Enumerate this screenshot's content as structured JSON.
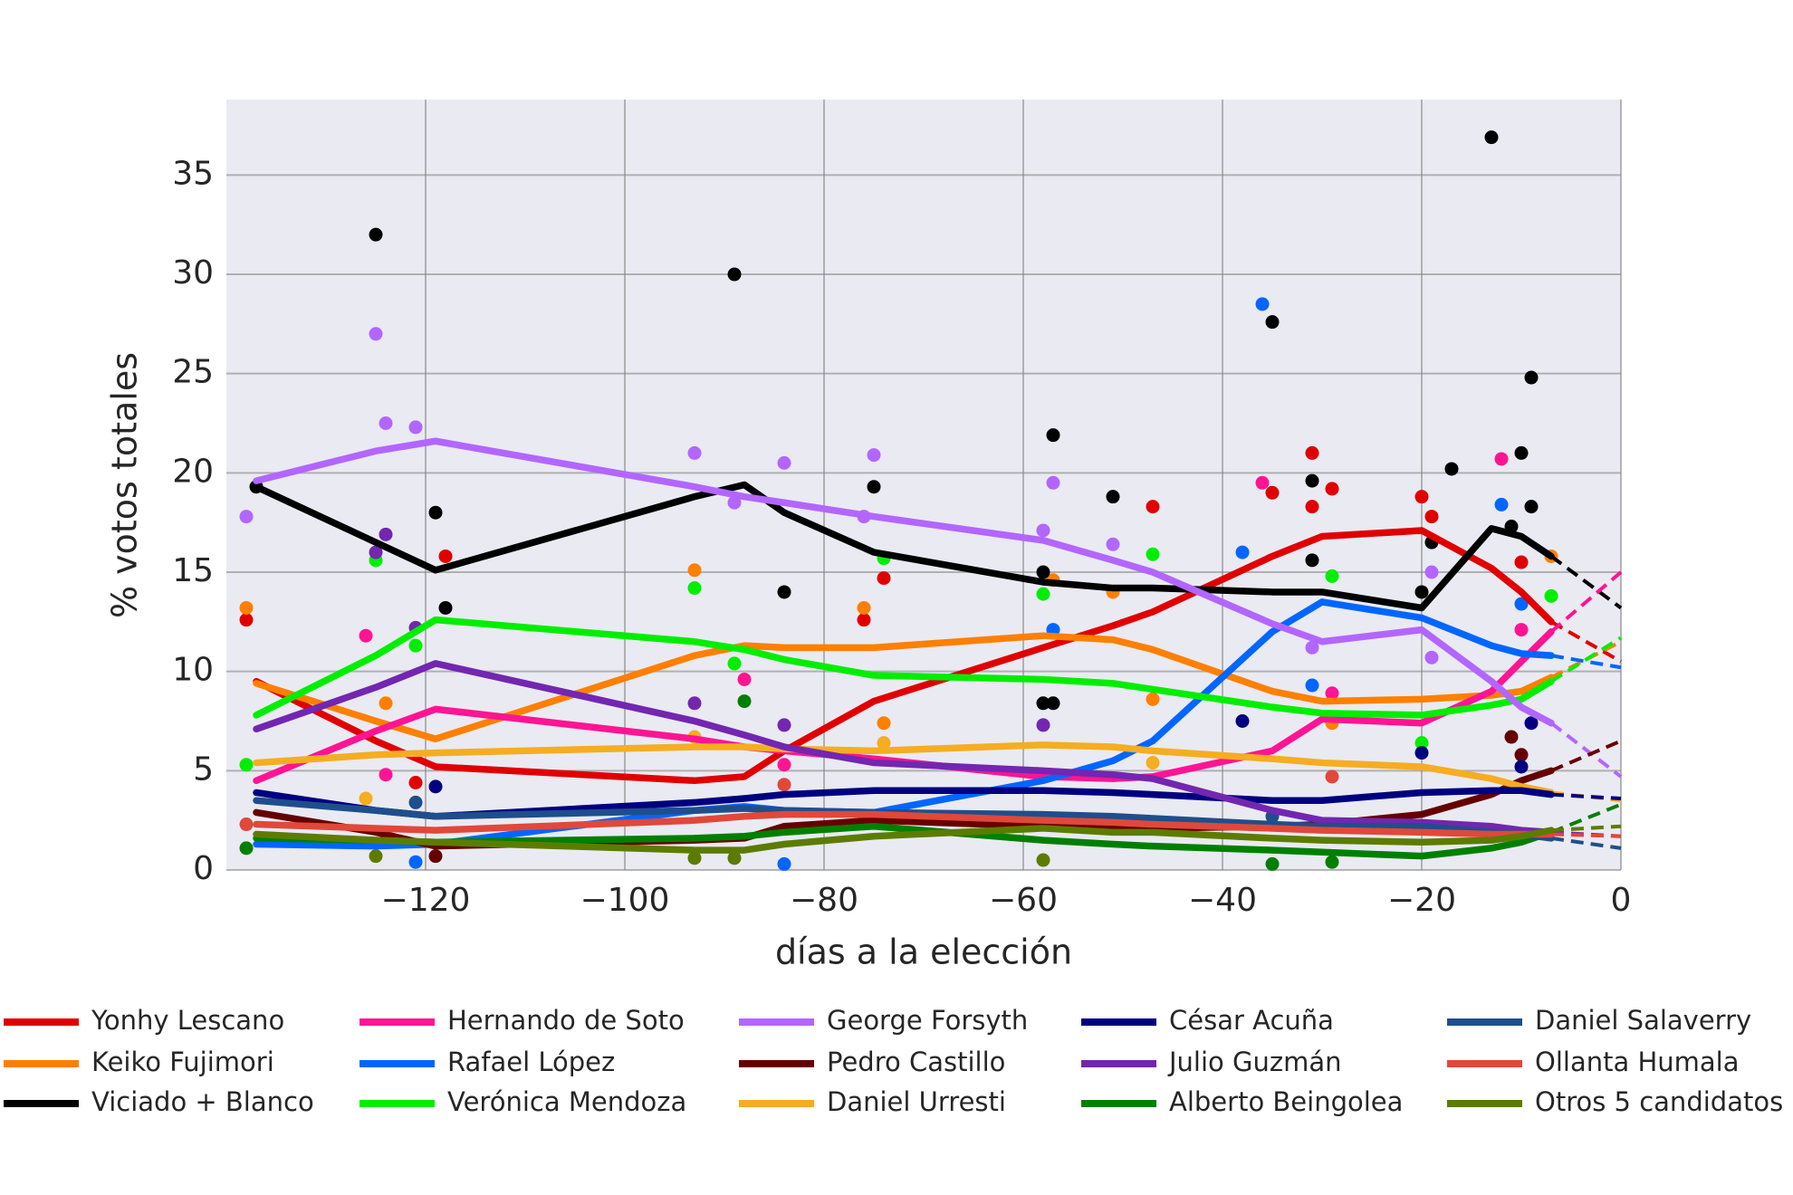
{
  "chart_data": {
    "type": "line",
    "xlabel": "días a la elección",
    "ylabel": "% votos totales",
    "xlim": [
      -140,
      0
    ],
    "ylim": [
      0,
      38.8
    ],
    "xticks": [
      {
        "value": -120,
        "label": "−120"
      },
      {
        "value": -100,
        "label": "−100"
      },
      {
        "value": -80,
        "label": "−80"
      },
      {
        "value": -60,
        "label": "−60"
      },
      {
        "value": -40,
        "label": "−40"
      },
      {
        "value": -20,
        "label": "−20"
      },
      0
    ],
    "yticks": [
      0,
      5,
      10,
      15,
      20,
      25,
      30,
      35
    ],
    "grid": true,
    "x": [
      -137,
      -125,
      -119,
      -93,
      -88,
      -84,
      -75,
      -58,
      -51,
      -47,
      -35,
      -30,
      -20,
      -13,
      -10,
      -7
    ],
    "projection_x": 0,
    "series": [
      {
        "name": "Yonhy Lescano",
        "color": "#e00000",
        "values": [
          9.5,
          6.5,
          5.2,
          4.5,
          4.7,
          6,
          8.5,
          11.2,
          12.3,
          13,
          15.8,
          16.8,
          17.1,
          15.2,
          14,
          12.5
        ],
        "projection": 10.5,
        "points": [
          [
            -138,
            12.6
          ],
          [
            -121,
            4.4
          ],
          [
            -118,
            15.8
          ],
          [
            -74,
            14.7
          ],
          [
            -76,
            12.6
          ],
          [
            -47,
            18.3
          ],
          [
            -35,
            19
          ],
          [
            -31,
            21
          ],
          [
            -31,
            18.3
          ],
          [
            -29,
            19.2
          ],
          [
            -20,
            18.8
          ],
          [
            -19,
            17.8
          ],
          [
            -10,
            15.5
          ]
        ]
      },
      {
        "name": "Keiko Fujimori",
        "color": "#ff7f00",
        "values": [
          9.4,
          7.5,
          6.6,
          10.8,
          11.3,
          11.2,
          11.2,
          11.8,
          11.6,
          11.1,
          9,
          8.5,
          8.6,
          8.8,
          9,
          9.7
        ],
        "projection": 11.5,
        "points": [
          [
            -138,
            13.2
          ],
          [
            -124,
            8.4
          ],
          [
            -93,
            15.1
          ],
          [
            -76,
            13.2
          ],
          [
            -74,
            7.4
          ],
          [
            -57,
            14.6
          ],
          [
            -51,
            14
          ],
          [
            -47,
            8.6
          ],
          [
            -29,
            7.4
          ],
          [
            -7,
            15.8
          ]
        ]
      },
      {
        "name": "Viciado + Blanco",
        "color": "#000000",
        "values": [
          19.3,
          16.5,
          15.1,
          18.8,
          19.4,
          18,
          16,
          14.5,
          14.2,
          14.2,
          14,
          14,
          13.2,
          17.2,
          16.8,
          15.8
        ],
        "projection": 13.2,
        "points": [
          [
            -137,
            19.3
          ],
          [
            -125,
            32
          ],
          [
            -119,
            18
          ],
          [
            -118,
            13.2
          ],
          [
            -89,
            30
          ],
          [
            -84,
            14
          ],
          [
            -75,
            19.3
          ],
          [
            -58,
            15
          ],
          [
            -57,
            21.9
          ],
          [
            -58,
            8.4
          ],
          [
            -57,
            8.4
          ],
          [
            -51,
            18.8
          ],
          [
            -35,
            27.6
          ],
          [
            -31,
            19.6
          ],
          [
            -31,
            15.6
          ],
          [
            -20,
            14
          ],
          [
            -19,
            16.5
          ],
          [
            -17,
            20.2
          ],
          [
            -13,
            36.9
          ],
          [
            -11,
            17.3
          ],
          [
            -9,
            24.8
          ],
          [
            -10,
            21
          ],
          [
            -9,
            18.3
          ]
        ]
      },
      {
        "name": "Hernando de Soto",
        "color": "#ff1493",
        "values": [
          4.5,
          7,
          8.1,
          6.6,
          6.2,
          6,
          5.6,
          4.7,
          4.6,
          4.7,
          6,
          7.6,
          7.4,
          9,
          10.5,
          12
        ],
        "projection": 15,
        "points": [
          [
            -126,
            11.8
          ],
          [
            -124,
            4.8
          ],
          [
            -88,
            9.6
          ],
          [
            -84,
            5.3
          ],
          [
            -36,
            19.5
          ],
          [
            -29,
            8.9
          ],
          [
            -12,
            20.7
          ],
          [
            -10,
            12.1
          ]
        ]
      },
      {
        "name": "Rafael López",
        "color": "#0066ff",
        "values": [
          1.3,
          1.2,
          1.3,
          3,
          3.2,
          3,
          2.9,
          4.5,
          5.5,
          6.5,
          12,
          13.5,
          12.7,
          11.3,
          10.9,
          10.8
        ],
        "projection": 10.2,
        "points": [
          [
            -121,
            0.4
          ],
          [
            -84,
            0.3
          ],
          [
            -57,
            12.1
          ],
          [
            -36,
            28.5
          ],
          [
            -38,
            16
          ],
          [
            -31,
            9.3
          ],
          [
            -12,
            18.4
          ],
          [
            -10,
            13.4
          ]
        ]
      },
      {
        "name": "Verónica Mendoza",
        "color": "#00ee00",
        "values": [
          7.8,
          10.8,
          12.6,
          11.5,
          11.1,
          10.6,
          9.8,
          9.6,
          9.4,
          9.1,
          8.2,
          7.9,
          7.8,
          8.3,
          8.6,
          9.5
        ],
        "projection": 11.7,
        "points": [
          [
            -138,
            5.3
          ],
          [
            -125,
            15.6
          ],
          [
            -121,
            11.3
          ],
          [
            -93,
            14.2
          ],
          [
            -89,
            10.4
          ],
          [
            -74,
            15.7
          ],
          [
            -58,
            13.9
          ],
          [
            -47,
            15.9
          ],
          [
            -29,
            14.8
          ],
          [
            -20,
            6.4
          ],
          [
            -7,
            13.8
          ]
        ]
      },
      {
        "name": "George Forsyth",
        "color": "#b266ff",
        "values": [
          19.6,
          21.1,
          21.6,
          19.3,
          18.8,
          18.5,
          17.8,
          16.6,
          15.6,
          15,
          12.4,
          11.5,
          12.1,
          9.5,
          8.2,
          7.4
        ],
        "projection": 4.7,
        "points": [
          [
            -138,
            17.8
          ],
          [
            -125,
            27
          ],
          [
            -124,
            22.5
          ],
          [
            -121,
            22.3
          ],
          [
            -93,
            21
          ],
          [
            -89,
            18.5
          ],
          [
            -84,
            20.5
          ],
          [
            -75,
            20.9
          ],
          [
            -76,
            17.8
          ],
          [
            -58,
            17.1
          ],
          [
            -57,
            19.5
          ],
          [
            -51,
            16.4
          ],
          [
            -31,
            11.2
          ],
          [
            -19,
            10.7
          ],
          [
            -19,
            15
          ]
        ]
      },
      {
        "name": "Pedro Castillo",
        "color": "#660000",
        "values": [
          2.9,
          1.9,
          1.2,
          1.5,
          1.6,
          2.2,
          2.5,
          2.2,
          2.1,
          2.1,
          2.2,
          2.3,
          2.8,
          3.8,
          4.5,
          5
        ],
        "projection": 6.5,
        "points": [
          [
            -119,
            0.7
          ],
          [
            -11,
            6.7
          ],
          [
            -10,
            5.8
          ]
        ]
      },
      {
        "name": "Daniel Urresti",
        "color": "#f5ad21",
        "values": [
          5.4,
          5.8,
          5.9,
          6.2,
          6.2,
          6.1,
          6,
          6.3,
          6.2,
          6,
          5.6,
          5.4,
          5.2,
          4.6,
          4.2,
          3.9
        ],
        "projection": 3.5,
        "points": [
          [
            -126,
            3.6
          ],
          [
            -93,
            6.7
          ],
          [
            -74,
            6.4
          ],
          [
            -47,
            5.4
          ]
        ]
      },
      {
        "name": "César Acuña",
        "color": "#000080",
        "values": [
          3.9,
          3.0,
          2.7,
          3.4,
          3.6,
          3.8,
          4.0,
          4.0,
          3.9,
          3.8,
          3.5,
          3.5,
          3.9,
          4.0,
          4.0,
          3.8
        ],
        "projection": 3.6,
        "points": [
          [
            -119,
            4.2
          ],
          [
            -38,
            7.5
          ],
          [
            -20,
            5.9
          ],
          [
            -10,
            5.2
          ],
          [
            -9,
            7.4
          ]
        ]
      },
      {
        "name": "Julio Guzmán",
        "color": "#7326b0",
        "values": [
          7.1,
          9.2,
          10.4,
          7.5,
          6.8,
          6.2,
          5.4,
          5.0,
          4.8,
          4.6,
          3.0,
          2.5,
          2.4,
          2.2,
          2.0,
          1.9
        ],
        "projection": 1.7,
        "points": [
          [
            -124,
            16.9
          ],
          [
            -125,
            16.0
          ],
          [
            -121,
            12.2
          ],
          [
            -93,
            8.4
          ],
          [
            -84,
            7.3
          ],
          [
            -58,
            7.3
          ]
        ]
      },
      {
        "name": "Alberto Beingolea",
        "color": "#008000",
        "values": [
          1.6,
          1.5,
          1.4,
          1.6,
          1.7,
          1.9,
          2.2,
          1.5,
          1.3,
          1.2,
          1.0,
          0.9,
          0.7,
          1.1,
          1.4,
          1.9
        ],
        "projection": 3.3,
        "points": [
          [
            -138,
            1.1
          ],
          [
            -88,
            8.5
          ],
          [
            -35,
            0.3
          ],
          [
            -29,
            0.4
          ]
        ]
      },
      {
        "name": "Daniel Salaverry",
        "color": "#1f4e8c",
        "values": [
          3.5,
          3.0,
          2.7,
          3.0,
          3.1,
          3.0,
          2.9,
          2.8,
          2.7,
          2.6,
          2.3,
          2.2,
          2.2,
          1.9,
          1.8,
          1.6
        ],
        "projection": 1.1,
        "points": [
          [
            -121,
            3.4
          ],
          [
            -35,
            2.7
          ]
        ]
      },
      {
        "name": "Ollanta Humala",
        "color": "#e0483a",
        "values": [
          2.3,
          2.1,
          2.0,
          2.5,
          2.7,
          2.8,
          2.8,
          2.5,
          2.4,
          2.3,
          2.1,
          2.0,
          1.9,
          1.8,
          1.8,
          1.8
        ],
        "projection": 1.7,
        "points": [
          [
            -138,
            2.3
          ],
          [
            -84,
            4.3
          ],
          [
            -29,
            4.7
          ]
        ]
      },
      {
        "name": "Otros 5 candidatos",
        "color": "#5c7c00",
        "values": [
          1.8,
          1.5,
          1.4,
          1.0,
          1.0,
          1.3,
          1.7,
          2.1,
          1.9,
          1.9,
          1.6,
          1.5,
          1.4,
          1.5,
          1.7,
          2.0
        ],
        "projection": 2.2,
        "points": [
          [
            -125,
            0.7
          ],
          [
            -93,
            0.6
          ],
          [
            -89,
            0.6
          ],
          [
            -58,
            0.5
          ]
        ]
      }
    ]
  }
}
